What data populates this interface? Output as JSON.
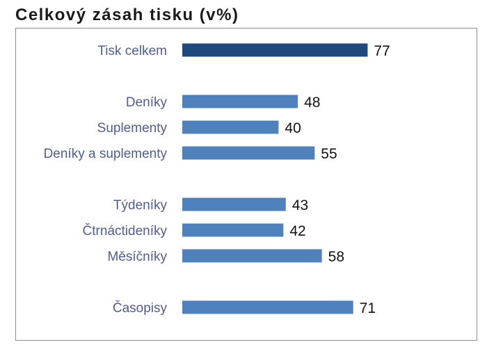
{
  "chart_data": {
    "type": "bar",
    "orientation": "horizontal",
    "title": "Celkový zásah tisku (v%)",
    "categories": [
      "Tisk celkem",
      "Deníky",
      "Suplementy",
      "Deníky a suplementy",
      "Týdeníky",
      "Čtrnáctideníky",
      "Měsíčníky",
      "Časopisy"
    ],
    "values": [
      77,
      48,
      40,
      55,
      43,
      42,
      58,
      71
    ],
    "groups": [
      [
        0
      ],
      [
        1,
        2,
        3
      ],
      [
        4,
        5,
        6
      ],
      [
        7
      ]
    ],
    "colors": {
      "highlight": "#1f497d",
      "bars": "#4f81bd",
      "category_text": "#4f5d96",
      "value_text": "#111111"
    },
    "xlim": [
      0,
      100
    ],
    "grid": false,
    "legend": "none",
    "xlabel": "",
    "ylabel": ""
  }
}
